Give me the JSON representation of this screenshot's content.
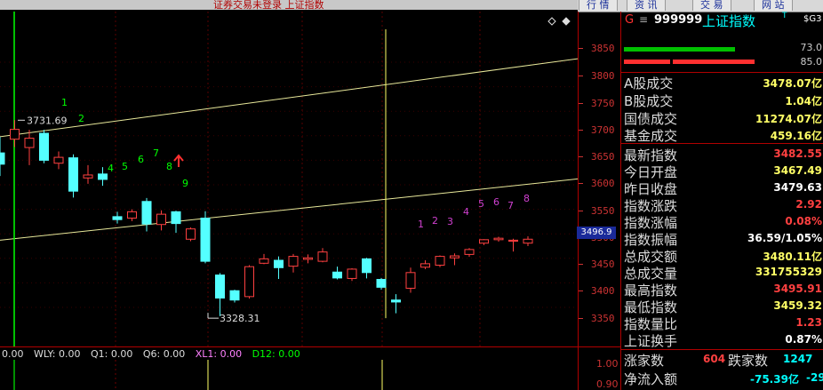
{
  "window": {
    "title": "证券交易未登录  上证指数"
  },
  "top_buttons": [
    "行 情",
    "资 讯",
    "交 易",
    "网 站"
  ],
  "toolbar_icons": [
    "diamond-icon",
    "diamond-outline-icon"
  ],
  "colors": {
    "up": "#ff4040",
    "down": "#54ffff",
    "ma_line": "#e8e89a",
    "axis": "#cc3333",
    "accent_blue": "#1a2a9a",
    "green": "#00ff00"
  },
  "chart": {
    "price_ticks": [
      "3850",
      "3800",
      "3750",
      "3700",
      "3650",
      "3600",
      "3550",
      "3500",
      "3450",
      "3400",
      "3350"
    ],
    "current_price_label": "3496.9",
    "high_label": "3731.69",
    "low_label": "3328.31",
    "counts_left": [
      "1",
      "2",
      "4",
      "5",
      "6",
      "7",
      "8",
      "9"
    ],
    "counts_right": [
      "1",
      "2",
      "3",
      "4",
      "5",
      "6",
      "7",
      "8"
    ],
    "candles": [
      {
        "o": 3665,
        "h": 3698,
        "l": 3618,
        "c": 3642
      },
      {
        "o": 3693,
        "h": 3732,
        "l": 3677,
        "c": 3713
      },
      {
        "o": 3676,
        "h": 3712,
        "l": 3640,
        "c": 3695
      },
      {
        "o": 3705,
        "h": 3712,
        "l": 3644,
        "c": 3650
      },
      {
        "o": 3644,
        "h": 3668,
        "l": 3632,
        "c": 3656
      },
      {
        "o": 3655,
        "h": 3662,
        "l": 3574,
        "c": 3587
      },
      {
        "o": 3614,
        "h": 3640,
        "l": 3602,
        "c": 3620
      },
      {
        "o": 3622,
        "h": 3636,
        "l": 3598,
        "c": 3611
      },
      {
        "o": 3535,
        "h": 3545,
        "l": 3521,
        "c": 3529
      },
      {
        "o": 3532,
        "h": 3550,
        "l": 3526,
        "c": 3545
      },
      {
        "o": 3566,
        "h": 3573,
        "l": 3505,
        "c": 3520
      },
      {
        "o": 3519,
        "h": 3548,
        "l": 3507,
        "c": 3540
      },
      {
        "o": 3545,
        "h": 3547,
        "l": 3502,
        "c": 3521
      },
      {
        "o": 3489,
        "h": 3513,
        "l": 3485,
        "c": 3510
      },
      {
        "o": 3532,
        "h": 3546,
        "l": 3440,
        "c": 3444
      },
      {
        "o": 3416,
        "h": 3420,
        "l": 3332,
        "c": 3369
      },
      {
        "o": 3384,
        "h": 3386,
        "l": 3360,
        "c": 3365
      },
      {
        "o": 3372,
        "h": 3436,
        "l": 3368,
        "c": 3433
      },
      {
        "o": 3440,
        "h": 3459,
        "l": 3438,
        "c": 3449
      },
      {
        "o": 3446,
        "h": 3454,
        "l": 3408,
        "c": 3431
      },
      {
        "o": 3434,
        "h": 3459,
        "l": 3421,
        "c": 3454
      },
      {
        "o": 3448,
        "h": 3458,
        "l": 3440,
        "c": 3451
      },
      {
        "o": 3444,
        "h": 3471,
        "l": 3442,
        "c": 3463
      },
      {
        "o": 3422,
        "h": 3433,
        "l": 3407,
        "c": 3410
      },
      {
        "o": 3409,
        "h": 3430,
        "l": 3404,
        "c": 3428
      },
      {
        "o": 3449,
        "h": 3451,
        "l": 3409,
        "c": 3421
      },
      {
        "o": 3407,
        "h": 3410,
        "l": 3386,
        "c": 3391
      },
      {
        "o": 3365,
        "h": 3377,
        "l": 3338,
        "c": 3361
      },
      {
        "o": 3389,
        "h": 3431,
        "l": 3380,
        "c": 3421
      },
      {
        "o": 3432,
        "h": 3446,
        "l": 3428,
        "c": 3439
      },
      {
        "o": 3436,
        "h": 3456,
        "l": 3432,
        "c": 3454
      },
      {
        "o": 3451,
        "h": 3460,
        "l": 3436,
        "c": 3455
      },
      {
        "o": 3458,
        "h": 3471,
        "l": 3453,
        "c": 3468
      },
      {
        "o": 3481,
        "h": 3489,
        "l": 3477,
        "c": 3488
      },
      {
        "o": 3488,
        "h": 3494,
        "l": 3484,
        "c": 3491
      },
      {
        "o": 3485,
        "h": 3490,
        "l": 3464,
        "c": 3487
      },
      {
        "o": 3481,
        "h": 3495,
        "l": 3475,
        "c": 3489
      }
    ]
  },
  "indicators": {
    "left_value": "0.00",
    "items": [
      "WLY: 0.00",
      "Q1: 0.00",
      "Q6: 0.00",
      "XL1: 0.00",
      "D12: 0.00"
    ],
    "axis_ticks": [
      "1.00",
      "0.90"
    ]
  },
  "panel": {
    "flag": "G",
    "menu_icon": "≡",
    "code": "999999",
    "name": "上证指数",
    "sup": "T",
    "ext": "$G3",
    "bar_values": [
      "73.0",
      "85.0"
    ],
    "rows1": [
      {
        "label": "A股成交",
        "value": "3478.07亿",
        "color": "#ffff66"
      },
      {
        "label": "B股成交",
        "value": "1.04亿",
        "color": "#ffff66"
      },
      {
        "label": "国债成交",
        "value": "11274.07亿",
        "color": "#ffff66"
      },
      {
        "label": "基金成交",
        "value": "459.16亿",
        "color": "#ffff66"
      }
    ],
    "rows2": [
      {
        "label": "最新指数",
        "value": "3482.55",
        "color": "#ff4040"
      },
      {
        "label": "今日开盘",
        "value": "3467.49",
        "color": "#ffff66"
      },
      {
        "label": "昨日收盘",
        "value": "3479.63",
        "color": "#ffffff"
      },
      {
        "label": "指数涨跌",
        "value": "2.92",
        "color": "#ff4040"
      },
      {
        "label": "指数涨幅",
        "value": "0.08%",
        "color": "#ff4040"
      },
      {
        "label": "指数振幅",
        "value": "36.59/1.05%",
        "color": "#ffffff"
      },
      {
        "label": "总成交额",
        "value": "3480.11亿",
        "color": "#ffff66"
      },
      {
        "label": "总成交量",
        "value": "331755329",
        "color": "#ffff66"
      },
      {
        "label": "最高指数",
        "value": "3495.91",
        "color": "#ff4040"
      },
      {
        "label": "最低指数",
        "value": "3459.32",
        "color": "#ffff66"
      },
      {
        "label": "指数量比",
        "value": "1.23",
        "color": "#ff4040"
      },
      {
        "label": "上证换手",
        "value": "0.87%",
        "color": "#ffffff"
      }
    ],
    "bottom": {
      "up_label": "涨家数",
      "up_value": "604",
      "down_label": "跌家数",
      "down_value": "1247",
      "net_label": "净流入额",
      "net_value": "-75.39亿",
      "net_extra": "-29"
    }
  }
}
